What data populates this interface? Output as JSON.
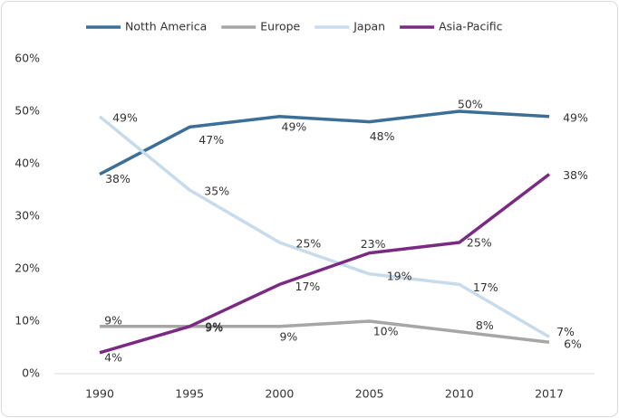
{
  "chart_data": {
    "type": "line",
    "categories": [
      "1990",
      "1995",
      "2000",
      "2005",
      "2010",
      "2017"
    ],
    "series": [
      {
        "name": "Notth America",
        "color": "#3b6f98",
        "values": [
          38,
          47,
          49,
          48,
          50,
          49
        ],
        "value_labels": [
          "38%",
          "47%",
          "49%",
          "48%",
          "50%",
          "49%"
        ]
      },
      {
        "name": "Europe",
        "color": "#a6a6a6",
        "values": [
          9,
          9,
          9,
          10,
          8,
          6
        ],
        "value_labels": [
          "9%",
          "9%",
          "9%",
          "10%",
          "8%",
          "6%"
        ]
      },
      {
        "name": "Japan",
        "color": "#c7dbea",
        "values": [
          49,
          35,
          25,
          19,
          17,
          7
        ],
        "value_labels": [
          "49%",
          "35%",
          "25%",
          "19%",
          "17%",
          "7%"
        ]
      },
      {
        "name": "Asia-Pacific",
        "color": "#7a2a82",
        "values": [
          4,
          9,
          17,
          23,
          25,
          38
        ],
        "value_labels": [
          "4%",
          "9%",
          "17%",
          "23%",
          "25%",
          "38%"
        ]
      }
    ],
    "ylim": [
      0,
      60
    ],
    "yticks": [
      {
        "value": 0,
        "label": "0%"
      },
      {
        "value": 10,
        "label": "10%"
      },
      {
        "value": 20,
        "label": "20%"
      },
      {
        "value": 30,
        "label": "30%"
      },
      {
        "value": 40,
        "label": "40%"
      },
      {
        "value": 50,
        "label": "50%"
      },
      {
        "value": 60,
        "label": "60%"
      }
    ],
    "grid": false
  }
}
